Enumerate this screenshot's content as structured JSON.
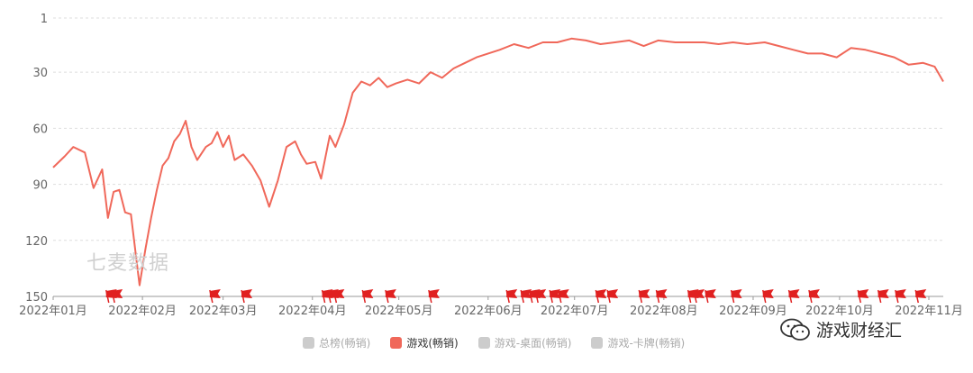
{
  "chart_data": {
    "type": "line",
    "y_reversed": true,
    "ylim": [
      1,
      150
    ],
    "yticks": [
      1,
      30,
      60,
      90,
      120,
      150
    ],
    "xticks": [
      "2022年01月",
      "2022年02月",
      "2022年03月",
      "2022年04月",
      "2022年05月",
      "2022年06月",
      "2022年07月",
      "2022年08月",
      "2022年09月",
      "2022年10月",
      "2022年11月"
    ],
    "grid": true,
    "series": [
      {
        "name": "游戏(畅销)",
        "color": "#f0685a",
        "x": [
          "2022-01-01",
          "2022-01-05",
          "2022-01-08",
          "2022-01-12",
          "2022-01-15",
          "2022-01-18",
          "2022-01-20",
          "2022-01-22",
          "2022-01-24",
          "2022-01-26",
          "2022-01-28",
          "2022-01-31",
          "2022-02-02",
          "2022-02-04",
          "2022-02-06",
          "2022-02-08",
          "2022-02-10",
          "2022-02-12",
          "2022-02-14",
          "2022-02-16",
          "2022-02-18",
          "2022-02-20",
          "2022-02-23",
          "2022-02-25",
          "2022-02-27",
          "2022-03-01",
          "2022-03-03",
          "2022-03-05",
          "2022-03-08",
          "2022-03-11",
          "2022-03-14",
          "2022-03-17",
          "2022-03-20",
          "2022-03-23",
          "2022-03-26",
          "2022-03-28",
          "2022-03-30",
          "2022-04-02",
          "2022-04-04",
          "2022-04-07",
          "2022-04-09",
          "2022-04-12",
          "2022-04-15",
          "2022-04-18",
          "2022-04-21",
          "2022-04-24",
          "2022-04-27",
          "2022-04-30",
          "2022-05-04",
          "2022-05-08",
          "2022-05-12",
          "2022-05-16",
          "2022-05-20",
          "2022-05-24",
          "2022-05-28",
          "2022-06-01",
          "2022-06-05",
          "2022-06-10",
          "2022-06-15",
          "2022-06-20",
          "2022-06-25",
          "2022-06-30",
          "2022-07-05",
          "2022-07-10",
          "2022-07-15",
          "2022-07-20",
          "2022-07-25",
          "2022-07-30",
          "2022-08-05",
          "2022-08-10",
          "2022-08-15",
          "2022-08-20",
          "2022-08-25",
          "2022-08-30",
          "2022-09-05",
          "2022-09-10",
          "2022-09-15",
          "2022-09-20",
          "2022-09-25",
          "2022-09-30",
          "2022-10-05",
          "2022-10-10",
          "2022-10-15",
          "2022-10-20",
          "2022-10-25",
          "2022-10-30",
          "2022-11-03",
          "2022-11-06"
        ],
        "values": [
          81,
          75,
          70,
          73,
          92,
          82,
          108,
          94,
          93,
          105,
          106,
          144,
          125,
          108,
          93,
          80,
          76,
          67,
          63,
          56,
          70,
          77,
          70,
          68,
          62,
          70,
          64,
          77,
          74,
          80,
          88,
          102,
          88,
          70,
          67,
          74,
          79,
          78,
          87,
          64,
          70,
          58,
          41,
          35,
          37,
          33,
          38,
          36,
          34,
          36,
          30,
          33,
          28,
          25,
          22,
          20,
          18,
          15,
          17,
          14,
          14,
          12,
          13,
          15,
          14,
          13,
          16,
          13,
          14,
          14,
          14,
          15,
          14,
          15,
          14,
          16,
          18,
          20,
          20,
          22,
          17,
          18,
          20,
          22,
          26,
          25,
          27,
          35
        ]
      }
    ],
    "legend": [
      "总榜(畅销)",
      "游戏(畅销)",
      "游戏-桌面(畅销)",
      "游戏-卡牌(畅销)"
    ],
    "legend_active": "游戏(畅销)",
    "legend_position": "bottom",
    "event_flags": [
      "2022-01-20",
      "2022-01-22",
      "2022-02-25",
      "2022-03-08",
      "2022-04-05",
      "2022-04-07",
      "2022-04-09",
      "2022-04-19",
      "2022-04-27",
      "2022-05-12",
      "2022-06-08",
      "2022-06-13",
      "2022-06-16",
      "2022-06-18",
      "2022-06-23",
      "2022-06-26",
      "2022-07-09",
      "2022-07-13",
      "2022-07-24",
      "2022-07-30",
      "2022-08-10",
      "2022-08-12",
      "2022-08-16",
      "2022-08-25",
      "2022-09-05",
      "2022-09-14",
      "2022-09-21",
      "2022-10-08",
      "2022-10-15",
      "2022-10-21",
      "2022-10-28"
    ],
    "flag_color": "#e02020"
  },
  "watermark": "七麦数据",
  "brand": "游戏财经汇"
}
